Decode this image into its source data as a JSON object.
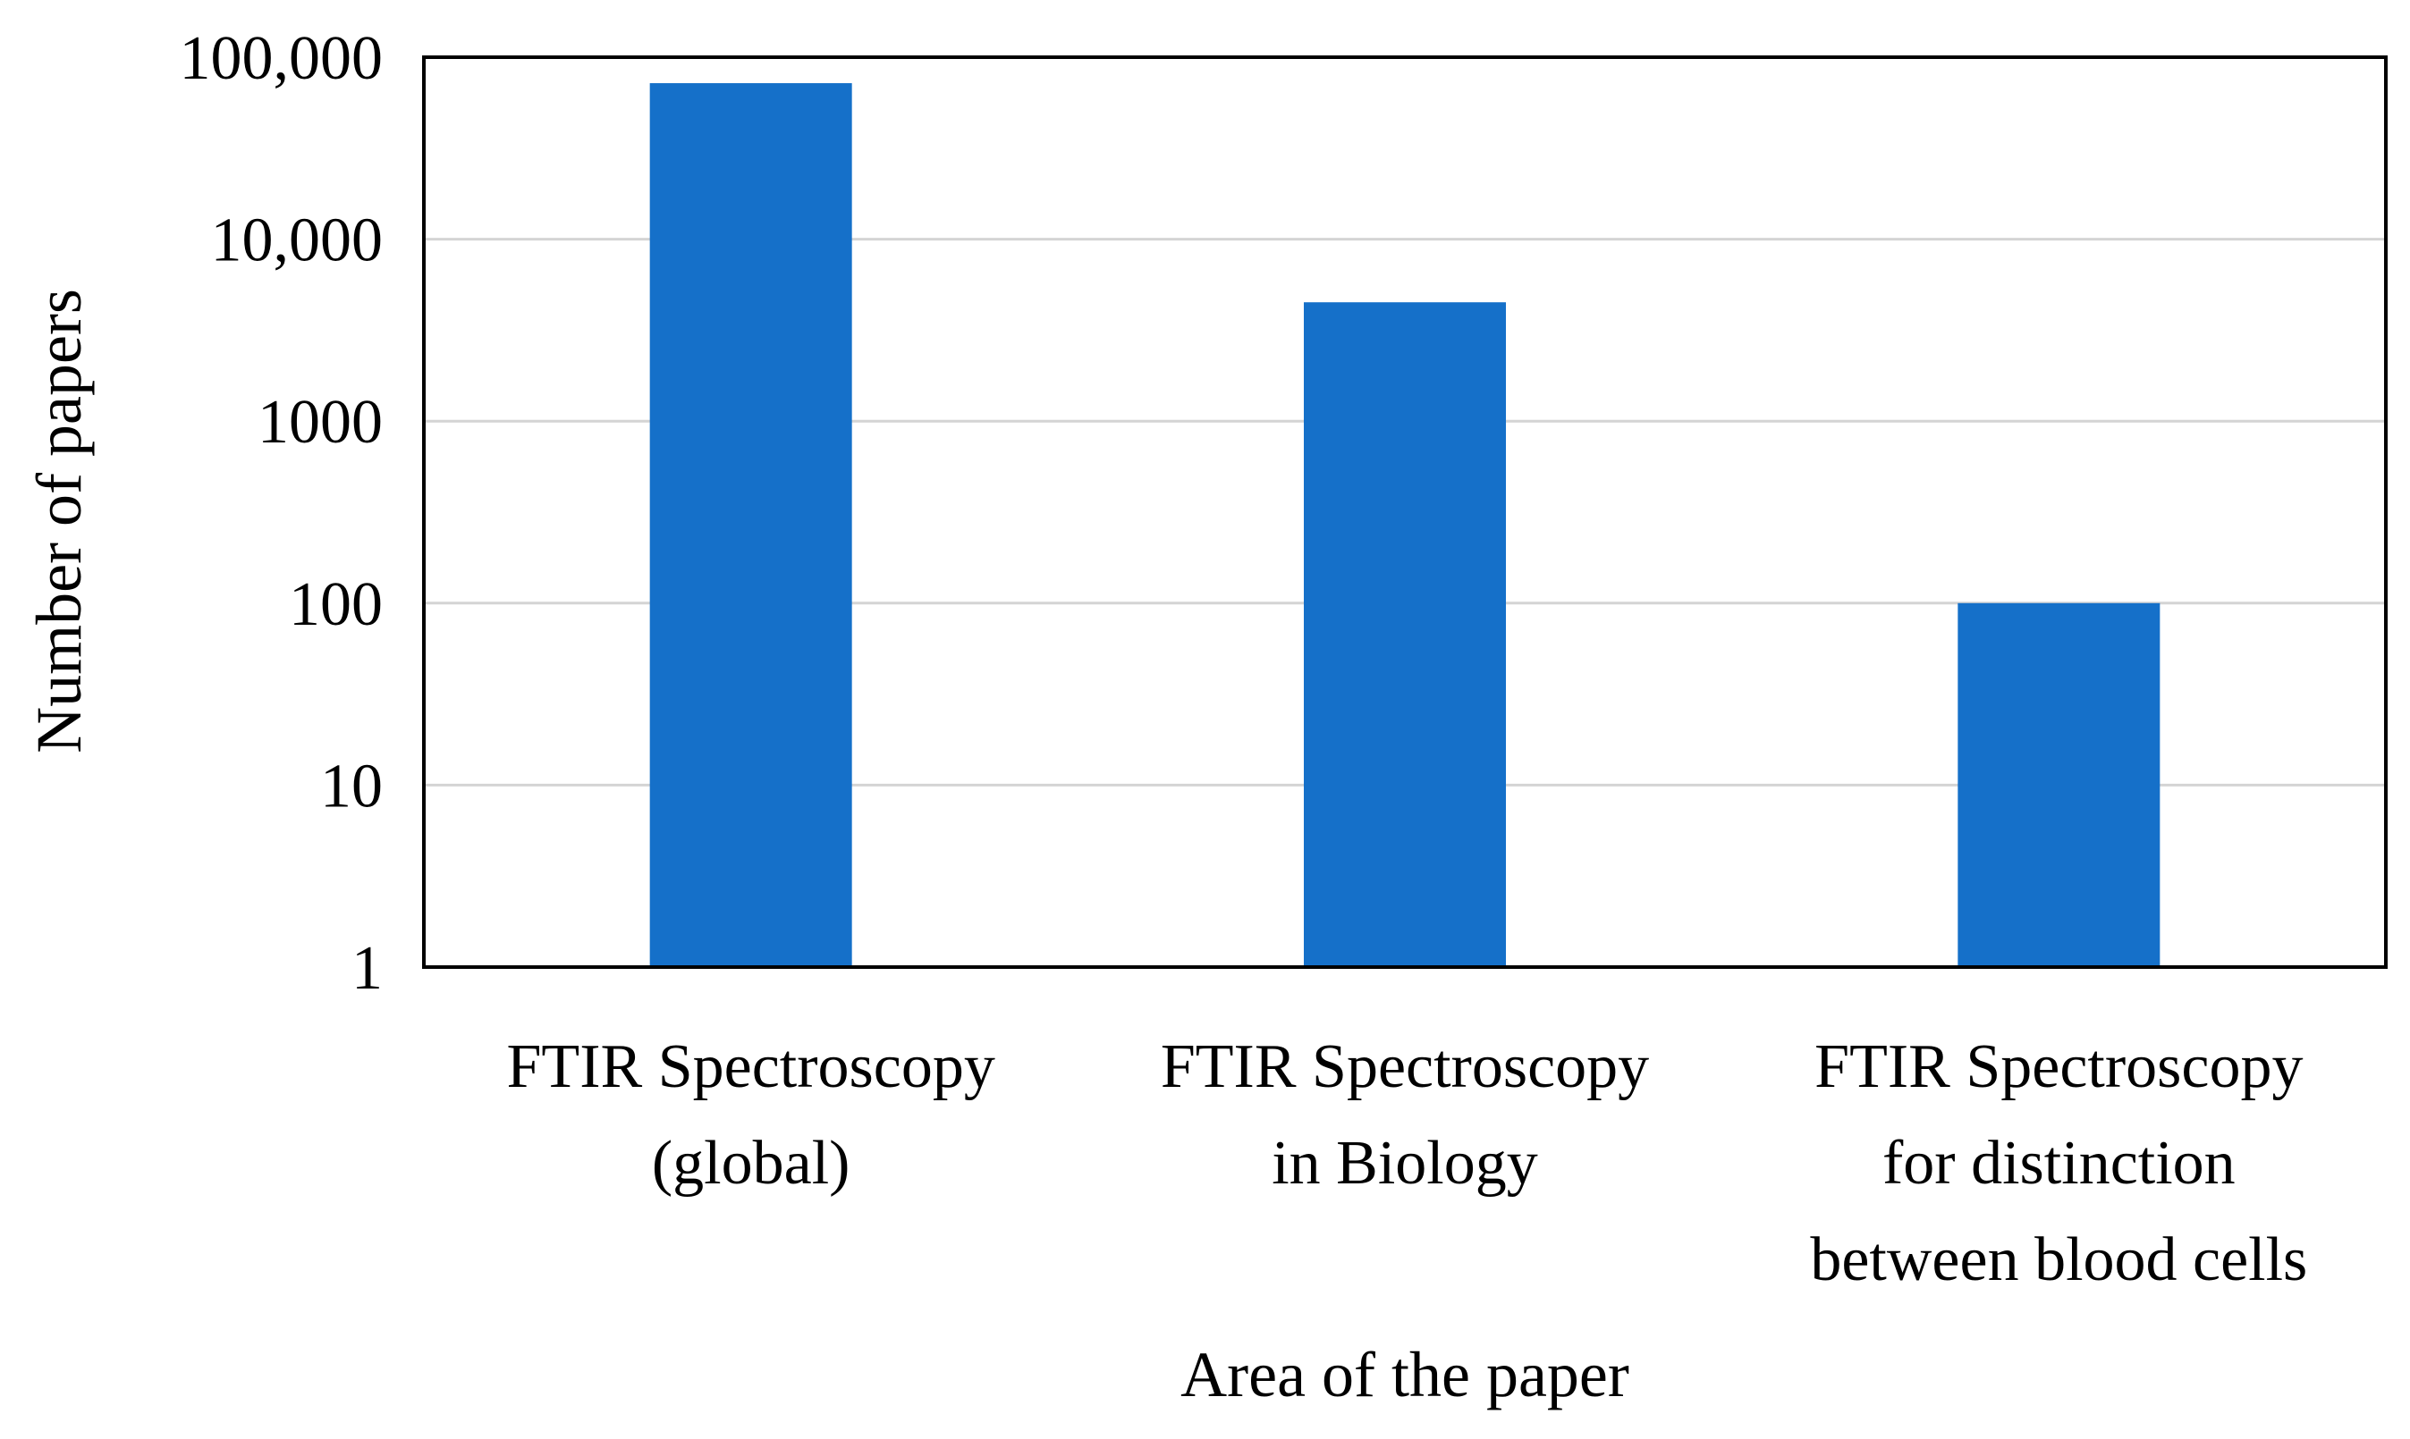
{
  "chart_data": {
    "type": "bar",
    "title": "",
    "xlabel": "Area of the paper",
    "ylabel": "Number of papers",
    "y_scale": "log",
    "ylim": [
      1,
      100000
    ],
    "y_ticks": [
      {
        "value": 1,
        "label": "1"
      },
      {
        "value": 10,
        "label": "10"
      },
      {
        "value": 100,
        "label": "100"
      },
      {
        "value": 1000,
        "label": "1000"
      },
      {
        "value": 10000,
        "label": "10,000"
      },
      {
        "value": 100000,
        "label": "100,000"
      }
    ],
    "categories": [
      [
        "FTIR Spectroscopy",
        "(global)"
      ],
      [
        "FTIR Spectroscopy",
        "in Biology"
      ],
      [
        "FTIR Spectroscopy",
        "for distinction",
        "between blood cells"
      ]
    ],
    "values": [
      72000,
      4500,
      100
    ],
    "grid": true,
    "legend": "none",
    "colors": {
      "bar": "#1570C9",
      "grid": "#D4D4D4",
      "frame": "#000000"
    }
  }
}
